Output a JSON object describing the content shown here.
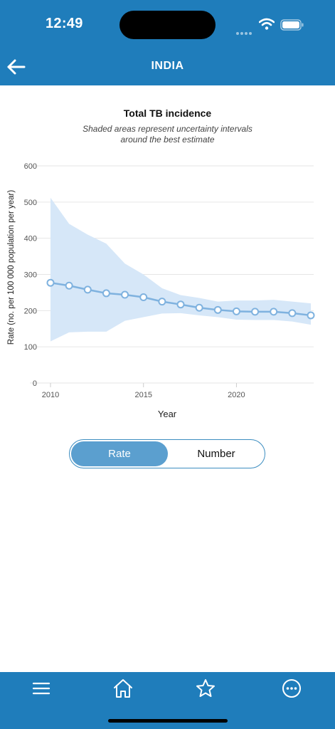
{
  "status_bar": {
    "time": "12:49"
  },
  "header": {
    "title": "INDIA",
    "back_icon": "arrow-left-icon"
  },
  "chart_data": {
    "type": "line",
    "title": "Total TB incidence",
    "subtitle_lines": [
      "Shaded areas represent uncertainty intervals",
      "around the best estimate"
    ],
    "xlabel": "Year",
    "ylabel": "Rate (no. per 100 000 population per year)",
    "xlim": [
      2010,
      2024
    ],
    "ylim": [
      0,
      600
    ],
    "x_ticks": [
      2010,
      2015,
      2020
    ],
    "y_ticks": [
      0,
      100,
      200,
      300,
      400,
      500,
      600
    ],
    "grid": true,
    "x": [
      2010,
      2011,
      2012,
      2013,
      2014,
      2015,
      2016,
      2017,
      2018,
      2019,
      2020,
      2021,
      2022,
      2023,
      2024
    ],
    "series": [
      {
        "values": [
          277,
          269,
          258,
          248,
          244,
          237,
          225,
          217,
          208,
          202,
          198,
          197,
          197,
          193,
          187
        ]
      }
    ],
    "uncertainty": {
      "upper": [
        512,
        440,
        410,
        385,
        330,
        300,
        262,
        243,
        235,
        225,
        228,
        228,
        230,
        225,
        220
      ],
      "lower": [
        115,
        140,
        142,
        142,
        172,
        182,
        192,
        193,
        187,
        182,
        175,
        174,
        174,
        170,
        161
      ]
    },
    "colors": {
      "line": "#7fb2df",
      "band": "#d6e7f8",
      "marker_fill": "#ffffff",
      "grid": "#e6e6e6"
    }
  },
  "toggle": {
    "options": [
      "Rate",
      "Number"
    ],
    "selected": "Rate"
  },
  "bottom_nav": {
    "items": [
      {
        "icon": "menu-icon"
      },
      {
        "icon": "home-icon"
      },
      {
        "icon": "star-icon"
      },
      {
        "icon": "more-icon"
      }
    ]
  },
  "colors": {
    "brand": "#1f7dbb",
    "toggle_active": "#5b9fcf"
  }
}
